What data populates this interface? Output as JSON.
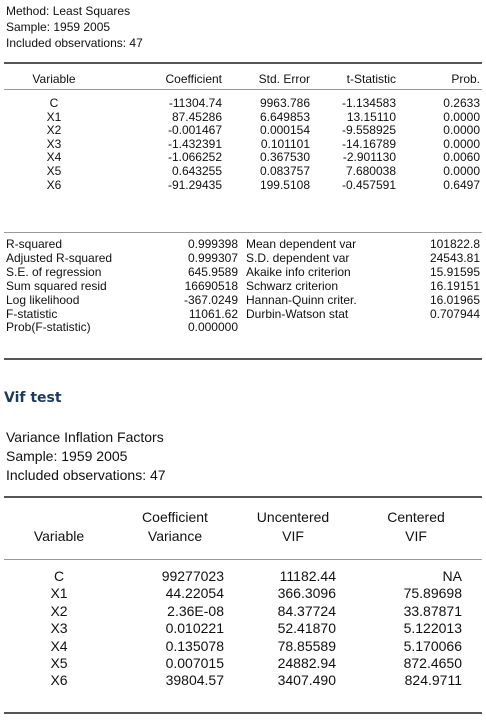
{
  "regression": {
    "header": {
      "method": "Method: Least Squares",
      "sample": "Sample: 1959 2005",
      "observations": "Included observations: 47"
    },
    "columns": {
      "variable": "Variable",
      "coefficient": "Coefficient",
      "std_error": "Std. Error",
      "t_statistic": "t-Statistic",
      "prob": "Prob."
    },
    "rows": [
      {
        "variable": "C",
        "coefficient": "-11304.74",
        "std_error": "9963.786",
        "t_statistic": "-1.134583",
        "prob": "0.2633"
      },
      {
        "variable": "X1",
        "coefficient": "87.45286",
        "std_error": "6.649853",
        "t_statistic": "13.15110",
        "prob": "0.0000"
      },
      {
        "variable": "X2",
        "coefficient": "-0.001467",
        "std_error": "0.000154",
        "t_statistic": "-9.558925",
        "prob": "0.0000"
      },
      {
        "variable": "X3",
        "coefficient": "-1.432391",
        "std_error": "0.101101",
        "t_statistic": "-14.16789",
        "prob": "0.0000"
      },
      {
        "variable": "X4",
        "coefficient": "-1.066252",
        "std_error": "0.367530",
        "t_statistic": "-2.901130",
        "prob": "0.0060"
      },
      {
        "variable": "X5",
        "coefficient": "0.643255",
        "std_error": "0.083757",
        "t_statistic": "7.680038",
        "prob": "0.0000"
      },
      {
        "variable": "X6",
        "coefficient": "-91.29435",
        "std_error": "199.5108",
        "t_statistic": "-0.457591",
        "prob": "0.6497"
      }
    ],
    "stats": [
      {
        "label": "R-squared",
        "value": "0.999398",
        "label2": "Mean dependent var",
        "value2": "101822.8"
      },
      {
        "label": "Adjusted R-squared",
        "value": "0.999307",
        "label2": "S.D. dependent var",
        "value2": "24543.81"
      },
      {
        "label": "S.E. of regression",
        "value": "645.9589",
        "label2": "Akaike info criterion",
        "value2": "15.91595"
      },
      {
        "label": "Sum squared resid",
        "value": "16690518",
        "label2": "Schwarz criterion",
        "value2": "16.19151"
      },
      {
        "label": "Log likelihood",
        "value": "-367.0249",
        "label2": "Hannan-Quinn criter.",
        "value2": "16.01965"
      },
      {
        "label": "F-statistic",
        "value": "11061.62",
        "label2": "Durbin-Watson stat",
        "value2": "0.707944"
      },
      {
        "label": "Prob(F-statistic)",
        "value": "0.000000",
        "label2": "",
        "value2": ""
      }
    ]
  },
  "vif_heading": "Vif test",
  "vif": {
    "header": {
      "title": "Variance Inflation Factors",
      "sample": "Sample: 1959 2005",
      "observations": "Included observations: 47"
    },
    "columns": {
      "variable": "Variable",
      "coef_var_1": "Coefficient",
      "coef_var_2": "Variance",
      "uncentered_1": "Uncentered",
      "uncentered_2": "VIF",
      "centered_1": "Centered",
      "centered_2": "VIF"
    },
    "rows": [
      {
        "variable": "C",
        "coef_var": "99277023",
        "uncentered": "11182.44",
        "centered": "NA"
      },
      {
        "variable": "X1",
        "coef_var": "44.22054",
        "uncentered": "366.3096",
        "centered": "75.89698"
      },
      {
        "variable": "X2",
        "coef_var": "2.36E-08",
        "uncentered": "84.37724",
        "centered": "33.87871"
      },
      {
        "variable": "X3",
        "coef_var": "0.010221",
        "uncentered": "52.41870",
        "centered": "5.122013"
      },
      {
        "variable": "X4",
        "coef_var": "0.135078",
        "uncentered": "78.85589",
        "centered": "5.170066"
      },
      {
        "variable": "X5",
        "coef_var": "0.007015",
        "uncentered": "24882.94",
        "centered": "872.4650"
      },
      {
        "variable": "X6",
        "coef_var": "39804.57",
        "uncentered": "3407.490",
        "centered": "824.9711"
      }
    ]
  }
}
